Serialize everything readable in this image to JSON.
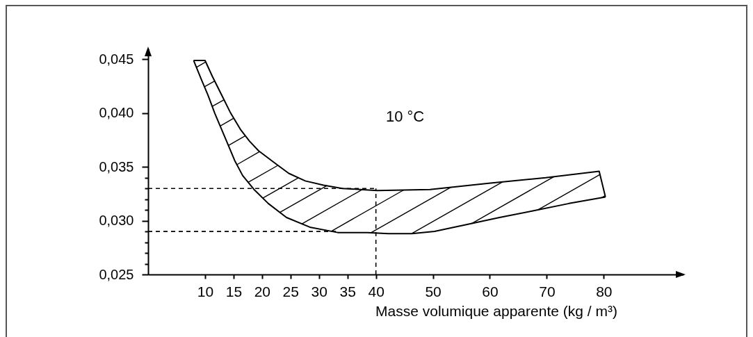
{
  "chart_data": {
    "type": "line",
    "xlabel": "Masse volumique apparente (kg / m³)",
    "annotations": [
      "10 °C"
    ],
    "series": [
      {
        "color": "#000000",
        "x": [
          8,
          10,
          11.3,
          12.9,
          14.5,
          16.2,
          17.8,
          19.4,
          21.9,
          24.7,
          27.6,
          30.8,
          34.1,
          37.3,
          40.2,
          49.5,
          60.1,
          69.8,
          79.2,
          80.3
        ],
        "values": [
          0.0449,
          0.0449,
          0.0434,
          0.0417,
          0.04,
          0.0385,
          0.0374,
          0.0365,
          0.0355,
          0.0344,
          0.0337,
          0.0333,
          0.033,
          0.0329,
          0.0328,
          0.0329,
          0.0335,
          0.034,
          0.0346,
          0.0322
        ]
      },
      {
        "color": "#000000",
        "x": [
          8,
          9.3,
          10.5,
          11.7,
          12.9,
          14.1,
          15.2,
          16.6,
          18.6,
          21.1,
          24.3,
          28.4,
          33.3,
          38.5,
          42.2,
          46.3,
          50.3,
          55.6,
          61.7,
          67.4,
          73.9,
          80.3
        ],
        "values": [
          0.0449,
          0.0432,
          0.0417,
          0.04,
          0.0385,
          0.037,
          0.0356,
          0.0342,
          0.0329,
          0.0316,
          0.0303,
          0.0294,
          0.0289,
          0.0289,
          0.0288,
          0.0288,
          0.029,
          0.0296,
          0.0303,
          0.0309,
          0.0316,
          0.0322
        ]
      },
      {
        "color": "#000000",
        "line_style": "dashed",
        "x": [
          0,
          40
        ],
        "values": [
          0.033,
          0.033
        ]
      },
      {
        "color": "#000000",
        "line_style": "dashed",
        "x": [
          0,
          33
        ],
        "values": [
          0.029,
          0.029
        ]
      },
      {
        "color": "#000000",
        "line_style": "dashed",
        "x": [
          40,
          40
        ],
        "values": [
          0.025,
          0.033
        ]
      }
    ],
    "xlim": [
      0,
      94
    ],
    "xticks": [
      10,
      15,
      20,
      25,
      30,
      35,
      40,
      50,
      60,
      70,
      80
    ],
    "ylim": [
      0.025,
      0.046
    ],
    "yticks": [
      {
        "value": 0.025,
        "label": "0,025"
      },
      {
        "value": 0.026,
        "label": null
      },
      {
        "value": 0.027,
        "label": null
      },
      {
        "value": 0.028,
        "label": null
      },
      {
        "value": 0.029,
        "label": null
      },
      {
        "value": 0.03,
        "label": "0,030"
      },
      {
        "value": 0.031,
        "label": null
      },
      {
        "value": 0.032,
        "label": null
      },
      {
        "value": 0.033,
        "label": null
      },
      {
        "value": 0.034,
        "label": null
      },
      {
        "value": 0.035,
        "label": "0,035"
      },
      {
        "value": 0.04,
        "label": "0,040"
      },
      {
        "value": 0.045,
        "label": "0,045"
      }
    ]
  }
}
